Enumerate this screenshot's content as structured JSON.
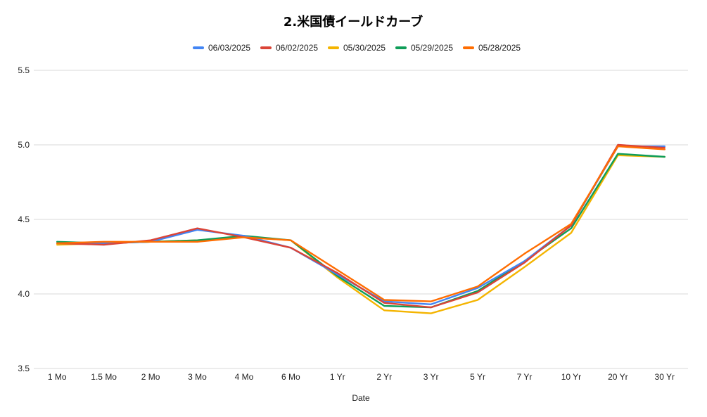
{
  "chart_data": {
    "type": "line",
    "title": "2.米国債イールドカーブ",
    "xlabel": "Date",
    "ylabel": "",
    "ylim": [
      3.5,
      5.5
    ],
    "yticks": [
      "3.5",
      "4.0",
      "4.5",
      "5.0",
      "5.5"
    ],
    "grid": true,
    "legend_position": "top-center",
    "categories": [
      "1 Mo",
      "1.5 Mo",
      "2 Mo",
      "3 Mo",
      "4 Mo",
      "6 Mo",
      "1 Yr",
      "2 Yr",
      "3 Yr",
      "5 Yr",
      "7 Yr",
      "10 Yr",
      "20 Yr",
      "30 Yr"
    ],
    "series": [
      {
        "name": "06/03/2025",
        "color": "#4285f4",
        "values": [
          4.34,
          4.34,
          4.35,
          4.43,
          4.39,
          4.31,
          4.13,
          3.95,
          3.93,
          4.04,
          4.22,
          4.46,
          4.99,
          4.99
        ]
      },
      {
        "name": "06/02/2025",
        "color": "#db4437",
        "values": [
          4.34,
          4.33,
          4.36,
          4.44,
          4.38,
          4.31,
          4.14,
          3.94,
          3.91,
          4.01,
          4.21,
          4.46,
          5.0,
          4.98
        ]
      },
      {
        "name": "05/30/2025",
        "color": "#f4b400",
        "values": [
          4.33,
          4.34,
          4.35,
          4.36,
          4.38,
          4.36,
          4.11,
          3.89,
          3.87,
          3.96,
          4.18,
          4.41,
          4.93,
          4.92
        ]
      },
      {
        "name": "05/29/2025",
        "color": "#0f9d58",
        "values": [
          4.35,
          4.34,
          4.35,
          4.36,
          4.39,
          4.36,
          4.12,
          3.92,
          3.91,
          4.02,
          4.22,
          4.44,
          4.94,
          4.92
        ]
      },
      {
        "name": "05/28/2025",
        "color": "#ff6d01",
        "values": [
          4.34,
          4.35,
          4.35,
          4.35,
          4.38,
          4.36,
          4.16,
          3.96,
          3.95,
          4.05,
          4.27,
          4.47,
          4.99,
          4.97
        ]
      }
    ]
  }
}
